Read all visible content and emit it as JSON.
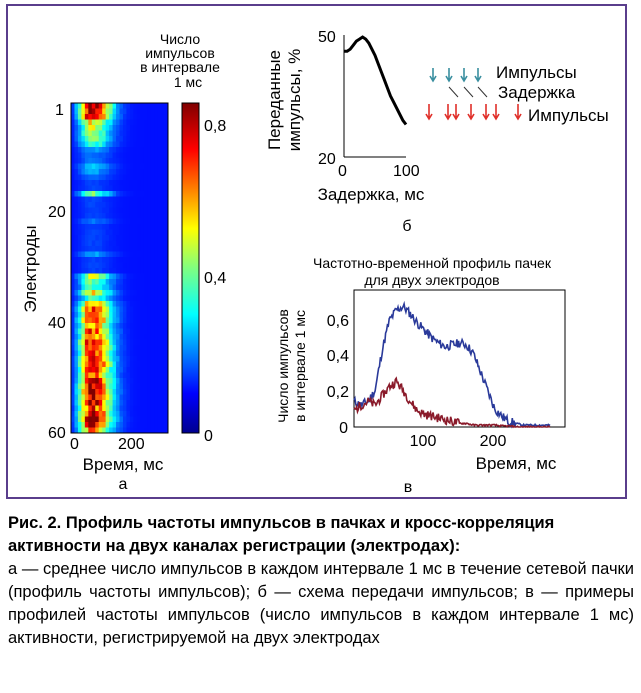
{
  "panel_a": {
    "colorbar_title_lines": [
      "Число",
      "импульсов",
      "в интервале",
      "1 мс"
    ],
    "ylabel": "Электроды",
    "xlabel": "Время, мс",
    "panel_letter": "а",
    "y_ticks": [
      "1",
      "20",
      "40",
      "60"
    ],
    "x_ticks": [
      "0",
      "200"
    ],
    "colorbar_ticks": [
      "0,8",
      "0,4",
      "0"
    ]
  },
  "panel_b": {
    "ylabel_lines": [
      "Переданные",
      "импульсы, %"
    ],
    "xlabel": "Задержка, мс",
    "panel_letter": "б",
    "y_ticks": [
      "50",
      "20"
    ],
    "x_ticks": [
      "0",
      "100"
    ],
    "schema_labels": [
      "Импульсы",
      "Задержка",
      "Импульсы"
    ],
    "colors": {
      "blue_arrows": "#3a8fa0",
      "red_arrows": "#e0302a"
    }
  },
  "panel_c": {
    "title_lines": [
      "Частотно-временной профиль пачек",
      "для двух электродов"
    ],
    "ylabel_lines": [
      "Число импульсов",
      "в интервале 1 мс"
    ],
    "xlabel": "Время, мс",
    "panel_letter": "в",
    "y_ticks": [
      "0",
      "0,2",
      "0,4",
      "0,6"
    ],
    "x_ticks": [
      "100",
      "200"
    ]
  },
  "caption": {
    "bold": "Рис. 2. Профиль частоты импульсов в пачках и кросс-корреляция активности на двух каналах регистрации (электродах):",
    "normal": "а — среднее число импульсов в каждом интервале 1 мс в течение сетевой пачки (профиль частоты импульсов); б — схема передачи импульсов; в — примеры профилей частоты импульсов (число импульсов в каждом интервале 1 мс) активности, регистрируемой на двух электродах"
  },
  "chart_data": [
    {
      "type": "heatmap",
      "xlabel": "Время, мс",
      "ylabel": "Электроды",
      "xlim": [
        0,
        280
      ],
      "ylim": [
        1,
        60
      ],
      "colorbar_range": [
        0,
        0.9
      ],
      "colorbar_label": "Число импульсов в интервале 1 мс",
      "row_activity": [
        0.9,
        0.85,
        0.8,
        0.5,
        0.45,
        0.4,
        0.35,
        0.3,
        0.15,
        0.1,
        0.1,
        0.2,
        0.15,
        0.1,
        0.05,
        0.05,
        0.35,
        0.05,
        0.05,
        0.05,
        0.05,
        0.1,
        0.05,
        0.05,
        0.05,
        0.05,
        0.05,
        0.15,
        0.05,
        0.05,
        0.05,
        0.45,
        0.35,
        0.3,
        0.5,
        0.3,
        0.6,
        0.7,
        0.65,
        0.75,
        0.6,
        0.7,
        0.65,
        0.8,
        0.75,
        0.7,
        0.8,
        0.85,
        0.75,
        0.7,
        0.8,
        0.85,
        0.9,
        0.85,
        0.8,
        0.7,
        0.85,
        0.9,
        0.8,
        0.6
      ]
    },
    {
      "type": "line",
      "xlabel": "Задержка, мс",
      "ylabel": "Переданные импульсы, %",
      "xlim": [
        0,
        100
      ],
      "ylim": [
        20,
        50
      ],
      "x": [
        0,
        5,
        10,
        15,
        20,
        25,
        30,
        35,
        40,
        45,
        50,
        55,
        60,
        65,
        70,
        75,
        80,
        85,
        90,
        95,
        100
      ],
      "y": [
        46,
        46,
        46.5,
        47.5,
        48.5,
        49,
        49.5,
        49,
        48,
        46.5,
        45,
        43,
        41,
        39,
        37,
        35,
        33.5,
        32,
        30.5,
        29,
        28
      ]
    },
    {
      "type": "line",
      "title": "Частотно-временной профиль пачек для двух электродов",
      "xlabel": "Время, мс",
      "ylabel": "Число импульсов в интервале 1 мс",
      "xlim": [
        0,
        300
      ],
      "ylim": [
        0,
        0.75
      ],
      "series": [
        {
          "color": "#2a3a9a",
          "x": [
            0,
            10,
            20,
            30,
            40,
            50,
            60,
            70,
            80,
            90,
            100,
            110,
            120,
            130,
            140,
            150,
            160,
            170,
            180,
            190,
            200,
            210,
            220,
            230,
            240,
            250,
            260,
            270,
            280
          ],
          "values": [
            0.14,
            0.12,
            0.14,
            0.2,
            0.42,
            0.58,
            0.64,
            0.66,
            0.62,
            0.57,
            0.53,
            0.49,
            0.46,
            0.44,
            0.45,
            0.46,
            0.45,
            0.4,
            0.3,
            0.2,
            0.1,
            0.06,
            0.03,
            0.02,
            0.01,
            0.01,
            0.01,
            0.01,
            0.01
          ]
        },
        {
          "color": "#8a1a2a",
          "x": [
            0,
            10,
            20,
            30,
            40,
            50,
            60,
            70,
            80,
            90,
            100,
            110,
            120,
            130,
            140,
            150,
            160,
            170,
            180,
            190,
            200,
            210,
            220,
            230,
            240,
            250,
            260,
            270,
            280
          ],
          "values": [
            0.09,
            0.12,
            0.14,
            0.12,
            0.17,
            0.22,
            0.25,
            0.2,
            0.14,
            0.09,
            0.07,
            0.06,
            0.05,
            0.04,
            0.03,
            0.02,
            0.02,
            0.01,
            0.01,
            0.01,
            0.01,
            0.005,
            0.005,
            0,
            0,
            0,
            0,
            0,
            0
          ]
        }
      ]
    }
  ]
}
